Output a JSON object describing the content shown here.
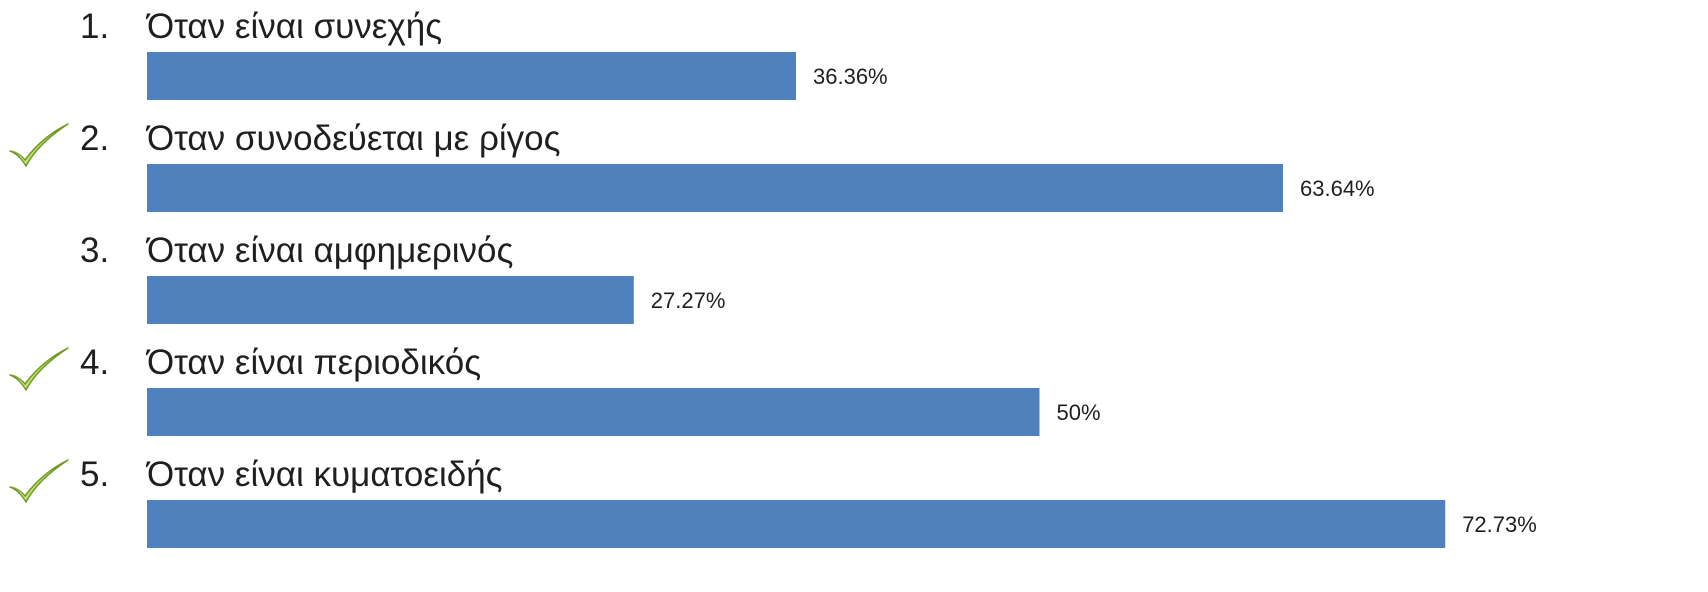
{
  "chart_data": {
    "type": "bar",
    "orientation": "horizontal",
    "categories": [
      "Όταν είναι συνεχής",
      "Όταν συνοδεύεται με ρίγος",
      "Όταν είναι αμφημερινός",
      "Όταν είναι περιοδικός",
      "Όταν είναι κυματοειδής"
    ],
    "numbers": [
      "1.",
      "2.",
      "3.",
      "4.",
      "5."
    ],
    "values": [
      36.36,
      63.64,
      27.27,
      50,
      72.73
    ],
    "value_labels": [
      "36.36%",
      "63.64%",
      "27.27%",
      "50%",
      "72.73%"
    ],
    "correct": [
      false,
      true,
      false,
      true,
      true
    ],
    "xlim": [
      0,
      100
    ],
    "grid": false,
    "legend": "none",
    "title": "",
    "xlabel": "",
    "ylabel": ""
  },
  "colors": {
    "bar": "#4F81BD",
    "text": "#1f1f1f",
    "check_light": "#C3DE7A",
    "check_dark": "#6E9A1E"
  },
  "icons": {
    "check": "checkmark-icon"
  }
}
